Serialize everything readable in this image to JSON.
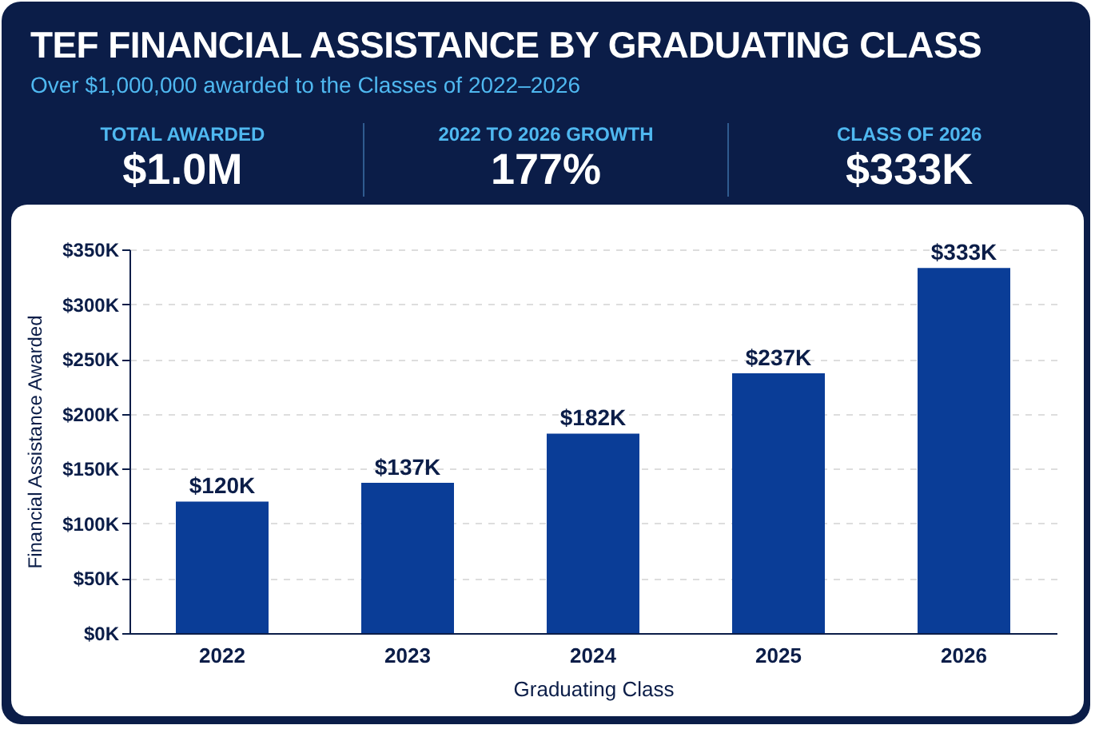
{
  "chart_data": [
    {
      "type": "other",
      "title": "TEF FINANCIAL ASSISTANCE BY GRADUATING CLASS",
      "subtitle": "Over $1,000,000 awarded to the Classes of 2022–2026",
      "annotations": [
        "TOTAL AWARDED",
        "$1.0M",
        "2022 TO 2026 GROWTH",
        "177%",
        "CLASS OF 2026",
        "$333K"
      ]
    },
    {
      "type": "bar",
      "xlabel": "Graduating Class",
      "ylabel": "Financial Assistance Awarded",
      "categories": [
        "2022",
        "2023",
        "2024",
        "2025",
        "2026"
      ],
      "values": [
        120,
        137,
        182,
        237,
        333
      ],
      "value_labels": [
        "$120K",
        "$137K",
        "$182K",
        "$237K",
        "$333K"
      ],
      "color": "#0a3d97",
      "ylim": [
        0,
        350
      ],
      "yticks": [
        {
          "value": 0,
          "label": "$0K"
        },
        {
          "value": 50,
          "label": "$50K"
        },
        {
          "value": 100,
          "label": "$100K"
        },
        {
          "value": 150,
          "label": "$150K"
        },
        {
          "value": 200,
          "label": "$200K"
        },
        {
          "value": 250,
          "label": "$250K"
        },
        {
          "value": 300,
          "label": "$300K"
        },
        {
          "value": 350,
          "label": "$350K"
        }
      ],
      "grid": "y"
    }
  ]
}
